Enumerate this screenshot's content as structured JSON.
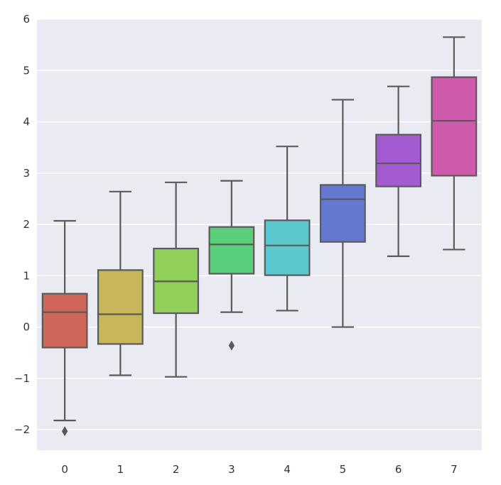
{
  "chart_data": {
    "type": "box",
    "categories": [
      "0",
      "1",
      "2",
      "3",
      "4",
      "5",
      "6",
      "7"
    ],
    "boxes": [
      {
        "whisker_low": -1.82,
        "q1": -0.4,
        "median": 0.29,
        "q3": 0.65,
        "whisker_high": 2.07,
        "outliers": [
          -2.03
        ]
      },
      {
        "whisker_low": -0.94,
        "q1": -0.33,
        "median": 0.25,
        "q3": 1.11,
        "whisker_high": 2.64,
        "outliers": []
      },
      {
        "whisker_low": -0.97,
        "q1": 0.27,
        "median": 0.89,
        "q3": 1.53,
        "whisker_high": 2.82,
        "outliers": []
      },
      {
        "whisker_low": 0.29,
        "q1": 1.04,
        "median": 1.61,
        "q3": 1.95,
        "whisker_high": 2.85,
        "outliers": [
          -0.36
        ]
      },
      {
        "whisker_low": 0.32,
        "q1": 1.01,
        "median": 1.59,
        "q3": 2.08,
        "whisker_high": 3.52,
        "outliers": []
      },
      {
        "whisker_low": 0.0,
        "q1": 1.66,
        "median": 2.49,
        "q3": 2.77,
        "whisker_high": 4.43,
        "outliers": []
      },
      {
        "whisker_low": 1.38,
        "q1": 2.74,
        "median": 3.19,
        "q3": 3.75,
        "whisker_high": 4.69,
        "outliers": []
      },
      {
        "whisker_low": 1.51,
        "q1": 2.95,
        "median": 4.02,
        "q3": 4.87,
        "whisker_high": 5.65,
        "outliers": []
      }
    ],
    "colors": [
      "#d0655a",
      "#c9b55a",
      "#8fcf5a",
      "#5acf7a",
      "#5ac8cc",
      "#6478d0",
      "#a45ad0",
      "#cf5aac"
    ],
    "y_ticks": [
      -2,
      -1,
      0,
      1,
      2,
      3,
      4,
      5,
      6
    ],
    "y_tick_labels": [
      "−2",
      "−1",
      "0",
      "1",
      "2",
      "3",
      "4",
      "5",
      "6"
    ],
    "ylim": [
      -2.4,
      6.0
    ],
    "grid": true,
    "background": "#eaeaf2",
    "line_color": "#5a5a5a",
    "xlabel": "",
    "ylabel": "",
    "title": ""
  }
}
